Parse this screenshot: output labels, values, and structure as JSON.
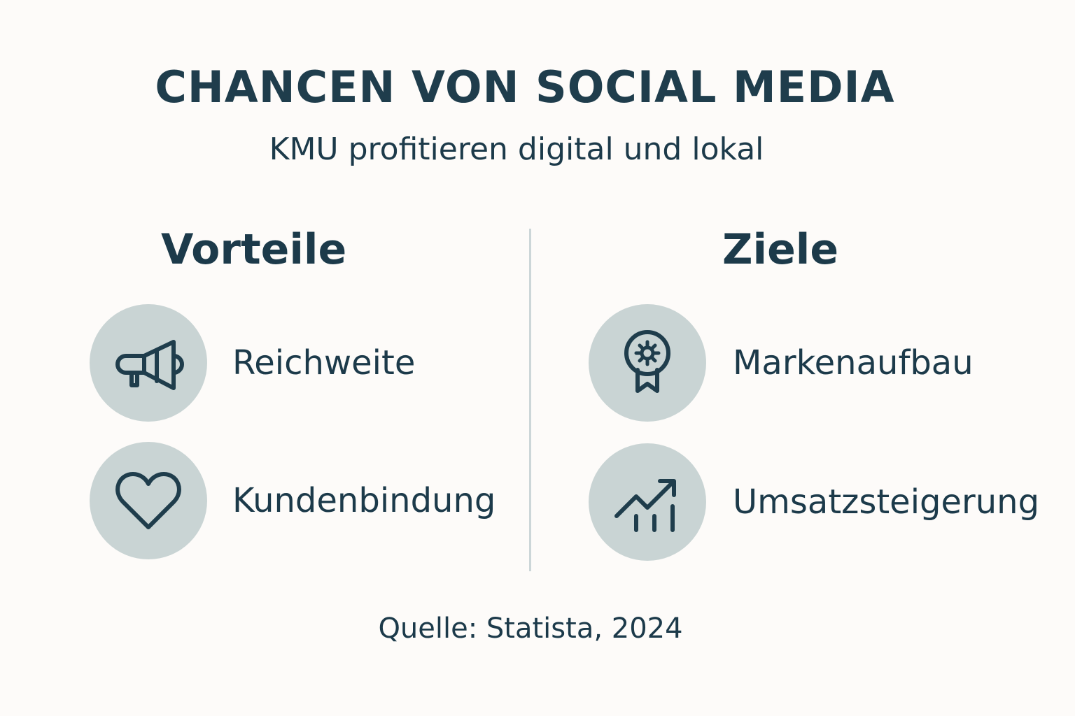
{
  "title": "CHANCEN VON SOCIAL MEDIA",
  "subtitle": "KMU profitieren digital und lokal",
  "columns": {
    "left": {
      "heading": "Vorteile",
      "items": [
        {
          "label": "Reichweite",
          "icon": "megaphone-icon"
        },
        {
          "label": "Kundenbindung",
          "icon": "heart-icon"
        }
      ]
    },
    "right": {
      "heading": "Ziele",
      "items": [
        {
          "label": "Markenaufbau",
          "icon": "award-badge-icon"
        },
        {
          "label": "Umsatzsteigerung",
          "icon": "growth-chart-icon"
        }
      ]
    }
  },
  "source": "Quelle: Statista, 2024",
  "colors": {
    "background": "#fdfbf9",
    "text": "#1c3a4a",
    "icon_circle": "#c9d4d4",
    "divider": "#ccd6d8"
  }
}
